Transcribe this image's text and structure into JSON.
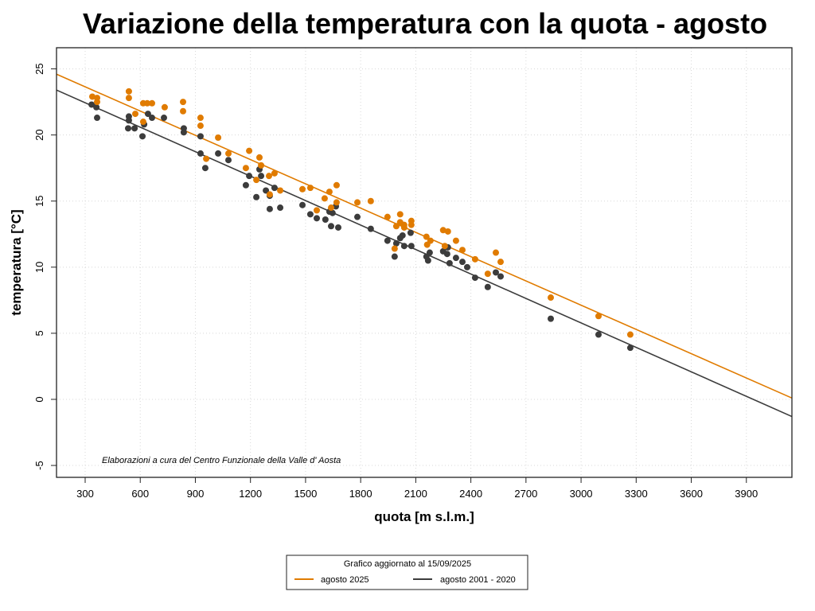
{
  "chart_data": {
    "type": "scatter",
    "title": "Variazione della temperatura con la quota -  agosto",
    "xlabel": "quota [m s.l.m.]",
    "ylabel": "temperatura [°C]",
    "xlim": [
      144,
      4148
    ],
    "ylim": [
      -5.9,
      26.6
    ],
    "xticks": [
      300,
      600,
      900,
      1200,
      1500,
      1800,
      2100,
      2400,
      2700,
      3000,
      3300,
      3600,
      3900
    ],
    "yticks": [
      -5,
      0,
      5,
      10,
      15,
      20,
      25
    ],
    "grid": true,
    "annotation": "Elaborazioni a cura del Centro Funzionale della Valle d' Aosta",
    "legend": {
      "placement": "bottom-center",
      "title": "Grafico aggiornato al 15/09/2025",
      "entries": [
        "agosto 2025",
        "agosto 2001 - 2020"
      ]
    },
    "series": [
      {
        "name": "agosto 2025",
        "color": "#E07B00",
        "trend_line": [
          [
            144,
            24.6
          ],
          [
            4148,
            0.1
          ]
        ],
        "points": [
          [
            339,
            22.9
          ],
          [
            365,
            22.8
          ],
          [
            365,
            22.5
          ],
          [
            538,
            23.3
          ],
          [
            538,
            22.8
          ],
          [
            573,
            21.6
          ],
          [
            616,
            22.4
          ],
          [
            638,
            22.4
          ],
          [
            664,
            22.4
          ],
          [
            616,
            21.0
          ],
          [
            733,
            22.1
          ],
          [
            833,
            22.5
          ],
          [
            833,
            21.8
          ],
          [
            928,
            21.3
          ],
          [
            928,
            20.7
          ],
          [
            959,
            18.2
          ],
          [
            1024,
            19.8
          ],
          [
            1080,
            18.6
          ],
          [
            1193,
            18.8
          ],
          [
            1175,
            17.5
          ],
          [
            1249,
            18.3
          ],
          [
            1258,
            17.7
          ],
          [
            1301,
            16.9
          ],
          [
            1331,
            17.1
          ],
          [
            1232,
            16.6
          ],
          [
            1305,
            15.5
          ],
          [
            1362,
            15.8
          ],
          [
            1483,
            15.9
          ],
          [
            1526,
            16.0
          ],
          [
            1561,
            14.3
          ],
          [
            1604,
            15.2
          ],
          [
            1630,
            15.7
          ],
          [
            1639,
            14.5
          ],
          [
            1669,
            16.2
          ],
          [
            1669,
            14.9
          ],
          [
            1782,
            14.9
          ],
          [
            1855,
            15.0
          ],
          [
            1946,
            13.8
          ],
          [
            1985,
            11.4
          ],
          [
            1994,
            13.1
          ],
          [
            2015,
            14.0
          ],
          [
            2015,
            13.4
          ],
          [
            2037,
            13.2
          ],
          [
            2037,
            13.0
          ],
          [
            2076,
            13.5
          ],
          [
            2076,
            13.2
          ],
          [
            2158,
            12.3
          ],
          [
            2180,
            12.0
          ],
          [
            2162,
            11.7
          ],
          [
            2249,
            12.8
          ],
          [
            2275,
            12.7
          ],
          [
            2258,
            11.6
          ],
          [
            2319,
            12.0
          ],
          [
            2354,
            11.3
          ],
          [
            2423,
            10.6
          ],
          [
            2492,
            9.5
          ],
          [
            2536,
            11.1
          ],
          [
            2562,
            10.4
          ],
          [
            2835,
            7.7
          ],
          [
            3095,
            6.3
          ],
          [
            3268,
            4.9
          ]
        ]
      },
      {
        "name": "agosto 2001 - 2020",
        "color": "#3C3C3C",
        "trend_line": [
          [
            144,
            23.4
          ],
          [
            4148,
            -1.3
          ]
        ],
        "points": [
          [
            335,
            22.3
          ],
          [
            361,
            22.1
          ],
          [
            365,
            21.3
          ],
          [
            538,
            21.4
          ],
          [
            538,
            21.1
          ],
          [
            534,
            20.5
          ],
          [
            569,
            20.5
          ],
          [
            612,
            19.9
          ],
          [
            621,
            20.8
          ],
          [
            642,
            21.6
          ],
          [
            664,
            21.3
          ],
          [
            729,
            21.3
          ],
          [
            837,
            20.5
          ],
          [
            837,
            20.2
          ],
          [
            928,
            18.6
          ],
          [
            928,
            19.9
          ],
          [
            954,
            17.5
          ],
          [
            1024,
            18.6
          ],
          [
            1080,
            18.1
          ],
          [
            1175,
            16.2
          ],
          [
            1193,
            16.9
          ],
          [
            1232,
            15.3
          ],
          [
            1249,
            17.4
          ],
          [
            1258,
            16.9
          ],
          [
            1284,
            15.8
          ],
          [
            1305,
            15.4
          ],
          [
            1305,
            14.4
          ],
          [
            1331,
            16.0
          ],
          [
            1362,
            14.5
          ],
          [
            1483,
            14.7
          ],
          [
            1526,
            14.0
          ],
          [
            1561,
            13.7
          ],
          [
            1608,
            13.6
          ],
          [
            1630,
            14.2
          ],
          [
            1639,
            13.1
          ],
          [
            1647,
            14.1
          ],
          [
            1665,
            14.6
          ],
          [
            1678,
            13.0
          ],
          [
            1782,
            13.8
          ],
          [
            1855,
            12.9
          ],
          [
            1946,
            12.0
          ],
          [
            1985,
            10.8
          ],
          [
            1994,
            11.8
          ],
          [
            2015,
            12.2
          ],
          [
            2028,
            12.4
          ],
          [
            2037,
            11.6
          ],
          [
            2072,
            12.6
          ],
          [
            2076,
            11.6
          ],
          [
            2158,
            10.8
          ],
          [
            2167,
            10.5
          ],
          [
            2176,
            11.1
          ],
          [
            2249,
            11.2
          ],
          [
            2271,
            11.0
          ],
          [
            2275,
            11.5
          ],
          [
            2284,
            10.3
          ],
          [
            2319,
            10.7
          ],
          [
            2354,
            10.4
          ],
          [
            2380,
            10.0
          ],
          [
            2423,
            9.2
          ],
          [
            2492,
            8.5
          ],
          [
            2536,
            9.6
          ],
          [
            2562,
            9.3
          ],
          [
            2835,
            6.1
          ],
          [
            3095,
            4.9
          ],
          [
            3268,
            3.9
          ]
        ]
      }
    ]
  }
}
